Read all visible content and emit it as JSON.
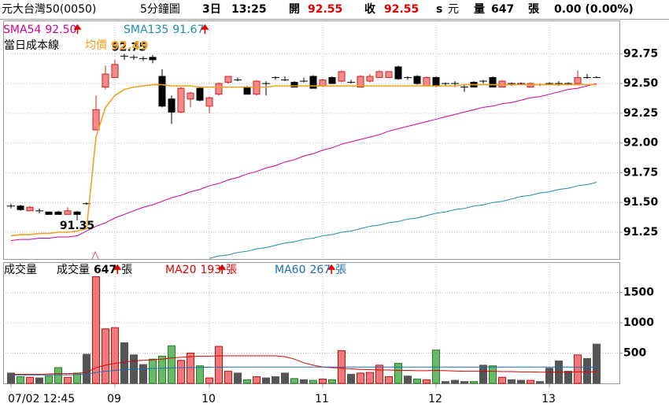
{
  "header": {
    "name": "元大台灣50(0050)",
    "interval": "5分鐘圖",
    "day": "3日",
    "time": "13:25",
    "open_label": "開",
    "open": 92.55,
    "close_label": "收",
    "close": 92.55,
    "s": "s",
    "currency": "元",
    "volume_label": "量",
    "volume": 647,
    "volume_unit": "張",
    "change": "0.00 (0.00%)"
  },
  "chart_data": [
    {
      "type": "candlestick",
      "open": [
        91.47,
        91.47,
        91.43,
        91.43,
        91.42,
        91.42,
        91.4,
        91.42,
        91.49,
        92.11,
        92.47,
        92.55,
        92.73,
        92.72,
        92.71,
        92.72,
        92.56,
        92.37,
        92.26,
        92.37,
        92.46,
        92.31,
        92.41,
        92.51,
        92.53,
        92.47,
        92.41,
        92.5,
        92.55,
        92.53,
        92.51,
        92.52,
        92.56,
        92.48,
        92.55,
        92.52,
        92.51,
        92.47,
        92.52,
        92.55,
        92.55,
        92.64,
        92.55,
        92.56,
        92.48,
        92.55,
        92.5,
        92.5,
        92.47,
        92.51,
        92.52,
        92.55,
        92.47,
        92.5,
        92.5,
        92.47,
        92.49,
        92.5,
        92.5,
        92.5,
        92.5,
        92.55,
        92.55
      ],
      "high": [
        91.49,
        91.48,
        91.47,
        91.45,
        91.42,
        91.43,
        91.46,
        91.43,
        91.5,
        92.4,
        92.65,
        92.7,
        92.75,
        92.74,
        92.73,
        92.74,
        92.62,
        92.4,
        92.47,
        92.43,
        92.47,
        92.39,
        92.51,
        92.56,
        92.55,
        92.48,
        92.53,
        92.52,
        92.56,
        92.56,
        92.52,
        92.55,
        92.57,
        92.54,
        92.56,
        92.61,
        92.53,
        92.57,
        92.58,
        92.61,
        92.6,
        92.65,
        92.56,
        92.57,
        92.56,
        92.56,
        92.51,
        92.52,
        92.49,
        92.52,
        92.53,
        92.56,
        92.53,
        92.51,
        92.51,
        92.51,
        92.5,
        92.51,
        92.52,
        92.51,
        92.61,
        92.58,
        92.56
      ],
      "low": [
        91.45,
        91.43,
        91.43,
        91.41,
        91.4,
        91.4,
        91.4,
        91.35,
        91.48,
        92.11,
        92.45,
        92.55,
        92.7,
        92.7,
        92.69,
        92.67,
        92.3,
        92.16,
        92.25,
        92.3,
        92.35,
        92.25,
        92.4,
        92.5,
        92.52,
        92.41,
        92.4,
        92.4,
        92.53,
        92.52,
        92.47,
        92.51,
        92.46,
        92.47,
        92.5,
        92.51,
        92.5,
        92.47,
        92.51,
        92.55,
        92.55,
        92.53,
        92.53,
        92.49,
        92.48,
        92.47,
        92.48,
        92.47,
        92.43,
        92.47,
        92.5,
        92.47,
        92.47,
        92.48,
        92.49,
        92.47,
        92.48,
        92.49,
        92.48,
        92.49,
        92.5,
        92.54,
        92.55
      ],
      "close": [
        91.47,
        91.44,
        91.46,
        91.43,
        91.4,
        91.4,
        91.43,
        91.4,
        91.49,
        92.28,
        92.58,
        92.66,
        92.73,
        92.72,
        92.71,
        92.7,
        92.31,
        92.26,
        92.46,
        92.42,
        92.36,
        92.38,
        92.5,
        92.56,
        92.53,
        92.41,
        92.52,
        92.5,
        92.55,
        92.53,
        92.47,
        92.52,
        92.46,
        92.53,
        92.5,
        92.6,
        92.51,
        92.56,
        92.56,
        92.6,
        92.6,
        92.54,
        92.55,
        92.5,
        92.55,
        92.48,
        92.5,
        92.5,
        92.47,
        92.47,
        92.52,
        92.47,
        92.52,
        92.5,
        92.5,
        92.5,
        92.49,
        92.5,
        92.5,
        92.5,
        92.55,
        92.55,
        92.55
      ],
      "up_color": "#f58a8a",
      "up_edge": "#d02020",
      "down_color": "#000000",
      "ylim": [
        91.025,
        93.03
      ],
      "yticks": [
        91.25,
        {
          "value": 91.5,
          "label": "91.50"
        },
        91.75,
        {
          "value": 92,
          "label": "92.00"
        },
        92.25,
        {
          "value": 92.5,
          "label": "92.50"
        },
        92.75
      ],
      "grid": true,
      "low_label": 91.35,
      "high_label": 92.75,
      "cost_line_label": "當日成本線",
      "lines": [
        {
          "name": "SMA54",
          "latest": {
            "value": 92.5,
            "label": "92.50"
          },
          "color": "#cc0099",
          "values": [
            91.18,
            91.19,
            91.19,
            91.2,
            91.2,
            91.21,
            91.21,
            91.22,
            91.26,
            91.3,
            91.33,
            91.37,
            91.4,
            91.43,
            91.46,
            91.48,
            91.51,
            91.54,
            91.56,
            91.59,
            91.61,
            91.64,
            91.66,
            91.69,
            91.71,
            91.74,
            91.76,
            91.79,
            91.81,
            91.84,
            91.86,
            91.89,
            91.91,
            91.94,
            91.96,
            91.99,
            92.01,
            92.03,
            92.05,
            92.07,
            92.1,
            92.12,
            92.14,
            92.16,
            92.18,
            92.2,
            92.22,
            92.24,
            92.26,
            92.28,
            92.3,
            92.31,
            92.33,
            92.34,
            92.36,
            92.38,
            92.39,
            92.41,
            92.43,
            92.45,
            92.46,
            92.48,
            92.5
          ]
        },
        {
          "name": "SMA135",
          "latest": 91.67,
          "color": "#1a8fb0",
          "values": [
            null,
            null,
            null,
            null,
            null,
            null,
            null,
            null,
            null,
            null,
            null,
            null,
            null,
            null,
            null,
            null,
            null,
            null,
            null,
            null,
            null,
            91.03,
            91.05,
            91.06,
            91.08,
            91.09,
            91.11,
            91.12,
            91.14,
            91.16,
            91.17,
            91.19,
            91.2,
            91.22,
            91.23,
            91.25,
            91.26,
            91.28,
            91.3,
            91.31,
            91.33,
            91.34,
            91.36,
            91.37,
            91.39,
            91.41,
            91.42,
            91.44,
            91.45,
            91.47,
            91.48,
            91.5,
            91.51,
            91.53,
            91.55,
            91.56,
            91.58,
            91.59,
            91.61,
            91.62,
            91.64,
            91.65,
            91.67
          ]
        },
        {
          "name": "均價",
          "latest": 92.49,
          "color": "#f0a020",
          "values": [
            91.22,
            91.23,
            91.23,
            91.24,
            91.24,
            91.25,
            91.25,
            91.26,
            91.28,
            92.05,
            92.3,
            92.4,
            92.45,
            92.47,
            92.48,
            92.49,
            92.49,
            92.48,
            92.48,
            92.48,
            92.47,
            92.47,
            92.47,
            92.47,
            92.47,
            92.47,
            92.47,
            92.47,
            92.48,
            92.48,
            92.48,
            92.48,
            92.48,
            92.48,
            92.48,
            92.48,
            92.48,
            92.48,
            92.48,
            92.48,
            92.48,
            92.48,
            92.48,
            92.48,
            92.48,
            92.48,
            92.48,
            92.48,
            92.49,
            92.49,
            92.49,
            92.49,
            92.49,
            92.49,
            92.49,
            92.49,
            92.49,
            92.49,
            92.49,
            92.49,
            92.49,
            92.49,
            92.49
          ]
        }
      ]
    },
    {
      "type": "bar",
      "title": "成交量",
      "categories": [
        "07/02 12:45",
        null,
        null,
        null,
        null,
        null,
        null,
        null,
        null,
        null,
        null,
        "09",
        null,
        null,
        null,
        null,
        null,
        null,
        null,
        null,
        null,
        "10",
        null,
        null,
        null,
        null,
        null,
        null,
        null,
        null,
        null,
        null,
        null,
        "11",
        null,
        null,
        null,
        null,
        null,
        null,
        null,
        null,
        null,
        null,
        null,
        "12",
        null,
        null,
        null,
        null,
        null,
        null,
        null,
        null,
        null,
        null,
        null,
        "13",
        null,
        null,
        null,
        null,
        null
      ],
      "values": [
        170,
        110,
        100,
        90,
        120,
        260,
        100,
        170,
        480,
        1760,
        900,
        920,
        670,
        470,
        310,
        400,
        450,
        620,
        380,
        500,
        290,
        90,
        610,
        200,
        170,
        60,
        110,
        90,
        110,
        170,
        80,
        60,
        50,
        70,
        60,
        540,
        150,
        170,
        180,
        300,
        110,
        330,
        120,
        70,
        60,
        550,
        30,
        50,
        30,
        30,
        300,
        290,
        100,
        60,
        50,
        50,
        30,
        250,
        370,
        200,
        470,
        410,
        647
      ],
      "up_color": "#f07878",
      "up_edge": "#c01010",
      "down_color": "#66bb66",
      "down_edge": "#2a7a2a",
      "flat_color": "#555555",
      "ylim": [
        0,
        2000
      ],
      "yticks": [
        500,
        1000,
        1500
      ],
      "grid": true,
      "legend": {
        "name": "成交量",
        "value": 647,
        "unit": "張"
      },
      "lines": [
        {
          "name": "MA20",
          "latest": 193,
          "unit": "張",
          "color": "#e00000",
          "values": [
            150,
            150,
            150,
            150,
            155,
            160,
            160,
            165,
            180,
            260,
            300,
            330,
            350,
            370,
            380,
            390,
            400,
            420,
            430,
            440,
            450,
            450,
            455,
            455,
            455,
            455,
            455,
            455,
            455,
            440,
            400,
            340,
            300,
            270,
            260,
            250,
            240,
            230,
            225,
            220,
            220,
            215,
            215,
            210,
            210,
            215,
            210,
            205,
            200,
            200,
            200,
            200,
            195,
            195,
            190,
            190,
            185,
            185,
            185,
            185,
            190,
            190,
            193
          ]
        },
        {
          "name": "MA60",
          "latest": 267,
          "unit": "張",
          "color": "#1a6fb0",
          "values": [
            140,
            140,
            140,
            140,
            140,
            142,
            142,
            144,
            150,
            180,
            200,
            215,
            225,
            235,
            240,
            245,
            250,
            255,
            260,
            262,
            265,
            268,
            270,
            270,
            270,
            270,
            270,
            270,
            270,
            270,
            270,
            270,
            270,
            270,
            270,
            270,
            270,
            270,
            270,
            270,
            270,
            270,
            270,
            270,
            270,
            270,
            270,
            270,
            270,
            270,
            270,
            270,
            270,
            270,
            270,
            270,
            270,
            270,
            269,
            269,
            268,
            268,
            267
          ]
        }
      ]
    }
  ]
}
